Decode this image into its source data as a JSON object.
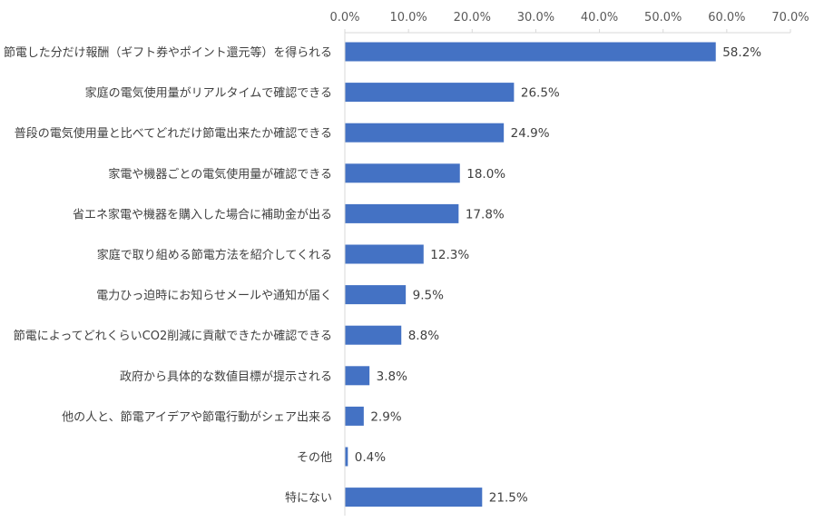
{
  "chart_data": {
    "type": "bar",
    "orientation": "horizontal",
    "categories": [
      "節電した分だけ報酬（ギフト券やポイント還元等）を得られる",
      "家庭の電気使用量がリアルタイムで確認できる",
      "普段の電気使用量と比べてどれだけ節電出来たか確認できる",
      "家電や機器ごとの電気使用量が確認できる",
      "省エネ家電や機器を購入した場合に補助金が出る",
      "家庭で取り組める節電方法を紹介してくれる",
      "電力ひっ迫時にお知らせメールや通知が届く",
      "節電によってどれくらいCO2削減に貢献できたか確認できる",
      "政府から具体的な数値目標が提示される",
      "他の人と、節電アイデアや節電行動がシェア出来る",
      "その他",
      "特にない"
    ],
    "values": [
      58.2,
      26.5,
      24.9,
      18.0,
      17.8,
      12.3,
      9.5,
      8.8,
      3.8,
      2.9,
      0.4,
      21.5
    ],
    "value_labels": [
      "58.2%",
      "26.5%",
      "24.9%",
      "18.0%",
      "17.8%",
      "12.3%",
      "9.5%",
      "8.8%",
      "3.8%",
      "2.9%",
      "0.4%",
      "21.5%"
    ],
    "xlim": [
      0,
      70
    ],
    "ticks": [
      0,
      10,
      20,
      30,
      40,
      50,
      60,
      70
    ],
    "tick_labels": [
      "0.0%",
      "10.0%",
      "20.0%",
      "30.0%",
      "40.0%",
      "50.0%",
      "60.0%",
      "70.0%"
    ],
    "axis_position": "top",
    "grid": false,
    "bar_color": "#4472c4",
    "title": "",
    "xlabel": "",
    "ylabel": ""
  }
}
